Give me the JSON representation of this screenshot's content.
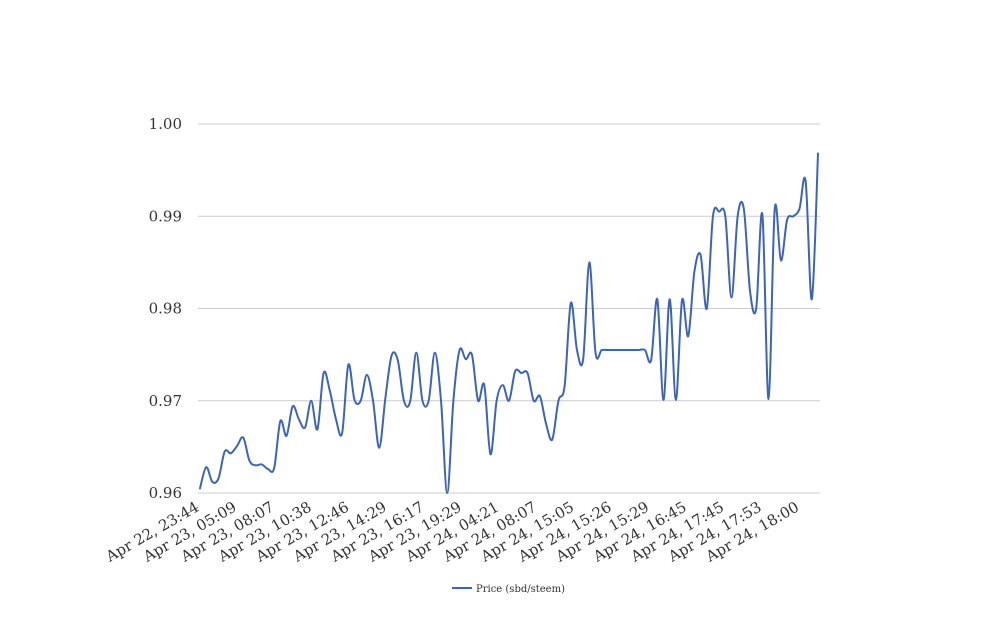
{
  "chart_data": {
    "type": "line",
    "title": "",
    "xlabel": "",
    "ylabel": "",
    "ylim": [
      0.96,
      1.0
    ],
    "yticks": [
      "0.96",
      "0.97",
      "0.98",
      "0.99",
      "1.00"
    ],
    "grid": true,
    "legend_position": "bottom-center",
    "x_tick_labels": [
      "Apr 22, 23:44",
      "Apr 23, 05:09",
      "Apr 23, 08:07",
      "Apr 23, 10:38",
      "Apr 23, 12:46",
      "Apr 23, 14:29",
      "Apr 23, 16:17",
      "Apr 23, 19:29",
      "Apr 24, 04:21",
      "Apr 24, 08:07",
      "Apr 24, 15:05",
      "Apr 24, 15:26",
      "Apr 24, 15:29",
      "Apr 24, 16:45",
      "Apr 24, 17:45",
      "Apr 24, 17:53",
      "Apr 24, 18:00"
    ],
    "series": [
      {
        "name": "Price (sbd/steem)",
        "color": "#3c64b8",
        "values": [
          0.9605,
          0.9628,
          0.9612,
          0.9616,
          0.9645,
          0.9643,
          0.9651,
          0.966,
          0.9635,
          0.963,
          0.9631,
          0.9626,
          0.9627,
          0.9678,
          0.9662,
          0.9694,
          0.968,
          0.9671,
          0.97,
          0.9669,
          0.973,
          0.9711,
          0.968,
          0.9665,
          0.9739,
          0.9701,
          0.97,
          0.9728,
          0.97,
          0.9649,
          0.9703,
          0.9749,
          0.9744,
          0.97,
          0.9699,
          0.9752,
          0.97,
          0.97,
          0.9752,
          0.97,
          0.96,
          0.97,
          0.9755,
          0.9745,
          0.975,
          0.97,
          0.9717,
          0.9642,
          0.97,
          0.9717,
          0.97,
          0.9732,
          0.973,
          0.973,
          0.97,
          0.9705,
          0.9675,
          0.9658,
          0.97,
          0.9716,
          0.9806,
          0.9755,
          0.9745,
          0.985,
          0.9752,
          0.9755,
          0.9755,
          0.9755,
          0.9755,
          0.9755,
          0.9755,
          0.9755,
          0.9755,
          0.9744,
          0.981,
          0.9701,
          0.981,
          0.9701,
          0.9809,
          0.977,
          0.984,
          0.9858,
          0.98,
          0.99,
          0.9905,
          0.99,
          0.9812,
          0.99,
          0.9908,
          0.9819,
          0.98,
          0.9902,
          0.9702,
          0.9908,
          0.9852,
          0.9896,
          0.99,
          0.9908,
          0.9938,
          0.981,
          0.9968
        ]
      }
    ]
  }
}
